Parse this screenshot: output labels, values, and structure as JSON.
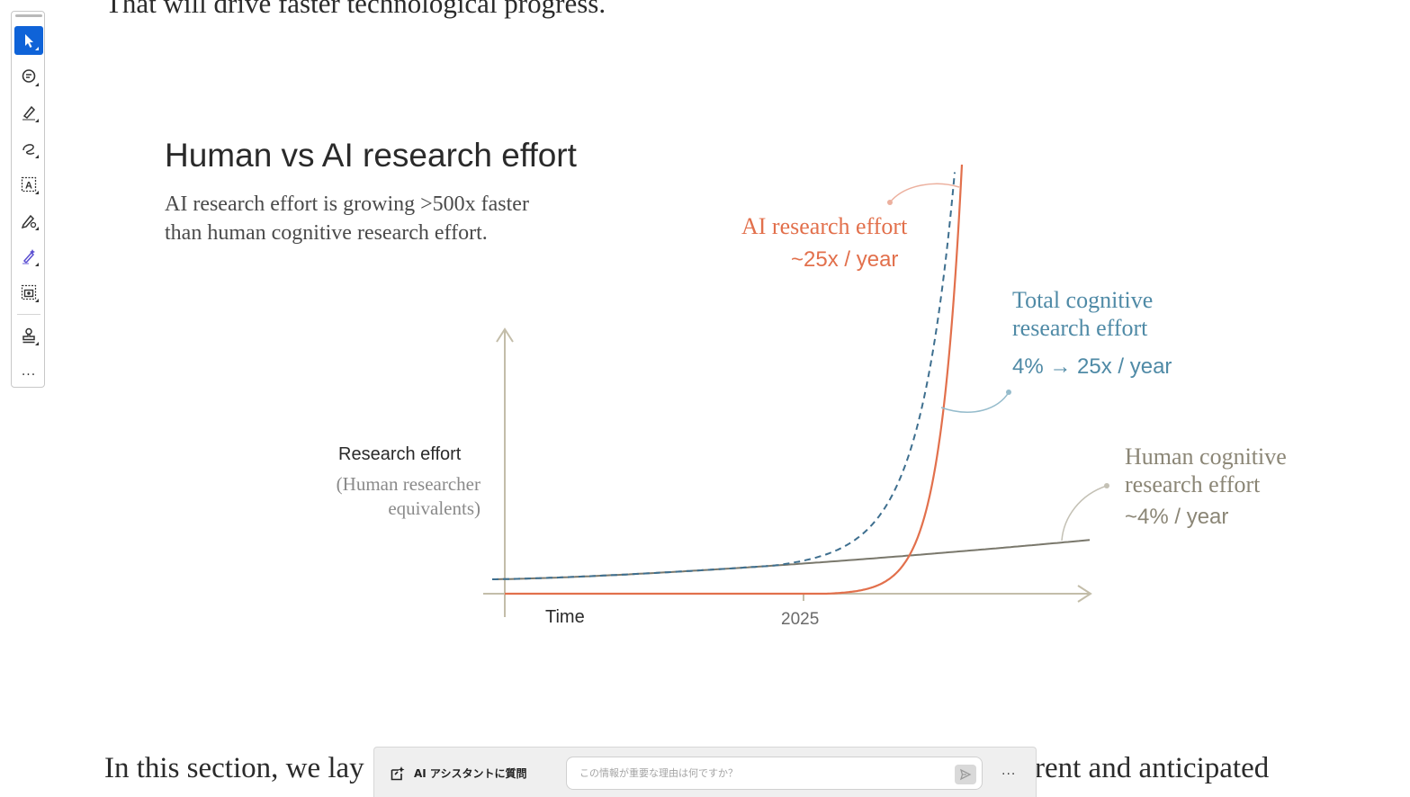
{
  "document": {
    "top_text": "That will drive faster technological progress.",
    "bottom_left_text": "In this section, we lay",
    "bottom_right_text": "rent and anticipated"
  },
  "toolbar": {
    "tools": [
      {
        "name": "select",
        "icon": "cursor-arrow-icon",
        "active": true
      },
      {
        "name": "comment",
        "icon": "comment-bubble-icon",
        "active": false
      },
      {
        "name": "highlight",
        "icon": "highlighter-pen-icon",
        "active": false
      },
      {
        "name": "draw",
        "icon": "freehand-loop-icon",
        "active": false
      },
      {
        "name": "text",
        "icon": "text-box-icon",
        "active": false
      },
      {
        "name": "fill-sign",
        "icon": "pen-sign-icon",
        "active": false
      },
      {
        "name": "ai-edit",
        "icon": "magic-pen-icon",
        "active": false
      },
      {
        "name": "snapshot",
        "icon": "camera-capture-icon",
        "active": false
      },
      {
        "name": "stamp",
        "icon": "stamp-icon",
        "active": false
      }
    ],
    "more_label": "..."
  },
  "figure": {
    "title": "Human vs AI research effort",
    "subtitle_line1": "AI research effort is growing >500x faster",
    "subtitle_line2": "than human cognitive research effort.",
    "colors": {
      "ai": "#e2704c",
      "total": "#4f8aa6",
      "human": "#7a786c",
      "axis": "#c3bda9"
    }
  },
  "chart_data": {
    "type": "line",
    "title": "Human vs AI research effort",
    "xlabel": "Time",
    "ylabel": "Research effort",
    "ylabel_sub_line1": "(Human researcher",
    "ylabel_sub_line2": "equivalents)",
    "x_ticks": [
      "2025"
    ],
    "series": [
      {
        "name": "AI research effort",
        "label_line1": "AI research effort",
        "rate": "~25x / year",
        "style": "solid",
        "growth": 25
      },
      {
        "name": "Total cognitive research effort",
        "label_line1": "Total cognitive",
        "label_line2": "research effort",
        "rate": "4% → 25x / year",
        "style": "dashed"
      },
      {
        "name": "Human cognitive research effort",
        "label_line1": "Human cognitive",
        "label_line2": "research effort",
        "rate": "~4% / year",
        "style": "solid",
        "growth": 1.04
      }
    ],
    "grid": false,
    "y_values_shown": false
  },
  "assistant_bar": {
    "label": "AI アシスタントに質問",
    "placeholder": "この情報が重要な理由は何ですか？",
    "more_label": "..."
  }
}
